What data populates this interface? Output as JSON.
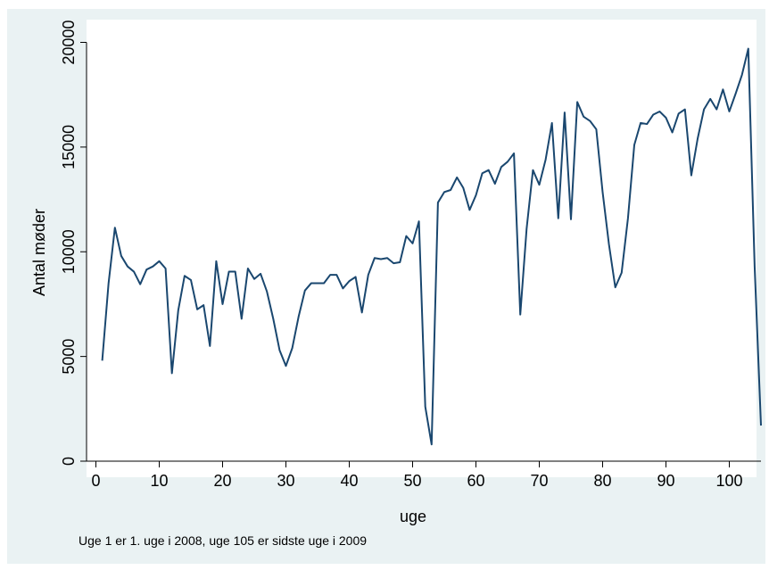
{
  "chart_data": {
    "type": "line",
    "title": "",
    "xlabel": "uge",
    "ylabel": "Antal møder",
    "note": "Uge 1 er 1. uge i 2008, uge 105 er sidste uge i 2009",
    "xlim": [
      0,
      105
    ],
    "ylim": [
      0,
      20000
    ],
    "x_ticks": [
      0,
      10,
      20,
      30,
      40,
      50,
      60,
      70,
      80,
      90,
      100
    ],
    "y_ticks": [
      0,
      5000,
      10000,
      15000,
      20000
    ],
    "x_tick_labels": [
      "0",
      "10",
      "20",
      "30",
      "40",
      "50",
      "60",
      "70",
      "80",
      "90",
      "100"
    ],
    "y_tick_labels": [
      "0",
      "5000",
      "10000",
      "15000",
      "20000"
    ],
    "grid": false,
    "legend": "none",
    "line_color": "#1a476f",
    "plot_background": "#ffffff",
    "outer_background": "#eaf2f3",
    "series": [
      {
        "x": [
          1,
          2,
          3,
          4,
          5,
          6,
          7,
          8,
          9,
          10,
          11,
          12,
          13,
          14,
          15,
          16,
          17,
          18,
          19,
          20,
          21,
          22,
          23,
          24,
          25,
          26,
          27,
          28,
          29,
          30,
          31,
          32,
          33,
          34,
          35,
          36,
          37,
          38,
          39,
          40,
          41,
          42,
          43,
          44,
          45,
          46,
          47,
          48,
          49,
          50,
          51,
          52,
          53,
          54,
          55,
          56,
          57,
          58,
          59,
          60,
          61,
          62,
          63,
          64,
          65,
          66,
          67,
          68,
          69,
          70,
          71,
          72,
          73,
          74,
          75,
          76,
          77,
          78,
          79,
          80,
          81,
          82,
          83,
          84,
          85,
          86,
          87,
          88,
          89,
          90,
          91,
          92,
          93,
          94,
          95,
          96,
          97,
          98,
          99,
          100,
          101,
          102,
          103,
          104,
          105
        ],
        "values": [
          4800,
          8500,
          11150,
          9800,
          9300,
          9050,
          8450,
          9150,
          9300,
          9550,
          9200,
          4200,
          7200,
          8850,
          8650,
          7250,
          7450,
          5500,
          9550,
          7500,
          9050,
          9050,
          6800,
          9200,
          8700,
          8950,
          8100,
          6800,
          5300,
          4550,
          5400,
          6900,
          8150,
          8500,
          8500,
          8500,
          8900,
          8900,
          8250,
          8600,
          8800,
          7100,
          8900,
          9700,
          9650,
          9700,
          9450,
          9500,
          10750,
          10400,
          11450,
          2600,
          800,
          12350,
          12850,
          12950,
          13550,
          13050,
          12000,
          12700,
          13750,
          13900,
          13250,
          14050,
          14300,
          14700,
          7000,
          11100,
          13900,
          13200,
          14400,
          16150,
          11600,
          16650,
          11550,
          17150,
          16450,
          16250,
          15850,
          12850,
          10350,
          8300,
          9000,
          11600,
          15100,
          16150,
          16100,
          16550,
          16700,
          16400,
          15700,
          16600,
          16800,
          13650,
          15400,
          16800,
          17300,
          16800,
          17750,
          16700,
          17550,
          18450,
          19700,
          9300,
          1700
        ]
      }
    ]
  }
}
